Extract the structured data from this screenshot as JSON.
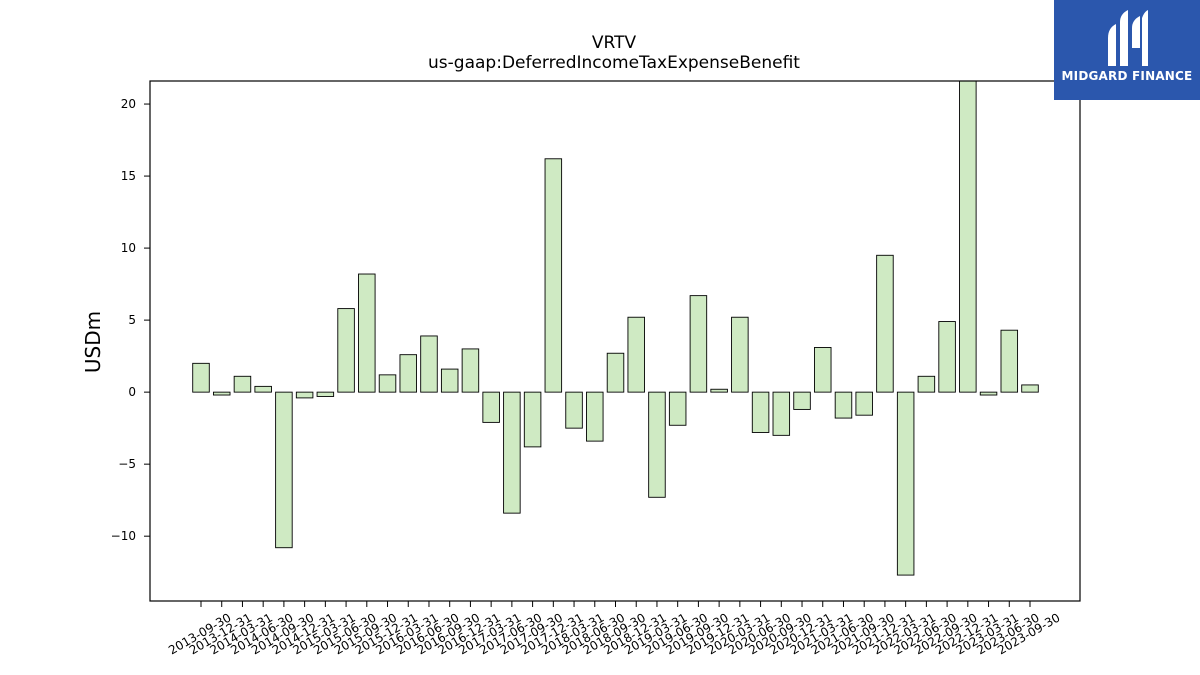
{
  "brand": {
    "name": "MIDGARD FINANCE",
    "bg_color": "#2b57ad"
  },
  "chart_data": {
    "type": "bar",
    "title": "VRTV",
    "subtitle": "us-gaap:DeferredIncomeTaxExpenseBenefit",
    "xlabel": "",
    "ylabel": "USDm",
    "ylim": [
      -14.5,
      21.6
    ],
    "yticks": [
      -10,
      -5,
      0,
      5,
      10,
      15,
      20
    ],
    "grid": false,
    "bar_color": "#cfeac3",
    "edge_color": "#000000",
    "categories": [
      "2013-09-30",
      "2013-12-31",
      "2014-03-31",
      "2014-06-30",
      "2014-09-30",
      "2014-12-31",
      "2015-03-31",
      "2015-06-30",
      "2015-09-30",
      "2015-12-31",
      "2016-03-31",
      "2016-06-30",
      "2016-09-30",
      "2016-12-31",
      "2017-03-31",
      "2017-06-30",
      "2017-09-30",
      "2017-12-31",
      "2018-03-31",
      "2018-06-30",
      "2018-09-30",
      "2018-12-31",
      "2019-03-31",
      "2019-06-30",
      "2019-09-30",
      "2019-12-31",
      "2020-03-31",
      "2020-06-30",
      "2020-09-30",
      "2020-12-31",
      "2021-03-31",
      "2021-06-30",
      "2021-09-30",
      "2021-12-31",
      "2022-03-31",
      "2022-06-30",
      "2022-09-30",
      "2022-12-31",
      "2023-03-31",
      "2023-06-30",
      "2023-09-30"
    ],
    "values": [
      2.0,
      -0.2,
      1.1,
      0.4,
      -10.8,
      -0.4,
      -0.3,
      5.8,
      8.2,
      1.2,
      2.6,
      3.9,
      1.6,
      3.0,
      -2.1,
      -8.4,
      -3.8,
      16.2,
      -2.5,
      -3.4,
      2.7,
      5.2,
      -7.3,
      -2.3,
      6.7,
      0.2,
      5.2,
      -2.8,
      -3.0,
      -1.2,
      3.1,
      -1.8,
      -1.6,
      9.5,
      -12.7,
      1.1,
      4.9,
      21.6,
      -0.2,
      4.3,
      0.5
    ]
  }
}
